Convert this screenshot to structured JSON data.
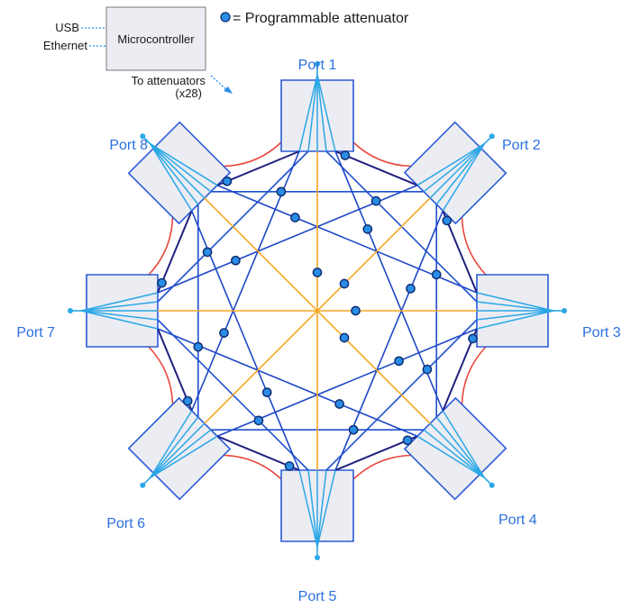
{
  "legend": {
    "label": "= Programmable attenuator"
  },
  "controller": {
    "title": "Microcontroller",
    "usb": "USB",
    "ethernet": "Ethernet",
    "attenuators_line1": "To attenuators",
    "attenuators_line2": "(x28)"
  },
  "ports": [
    {
      "label": "Port 1"
    },
    {
      "label": "Port 2"
    },
    {
      "label": "Port 3"
    },
    {
      "label": "Port 4"
    },
    {
      "label": "Port 5"
    },
    {
      "label": "Port 6"
    },
    {
      "label": "Port 7"
    },
    {
      "label": "Port 8"
    }
  ],
  "colors": {
    "box_fill": "#ececf3",
    "box_stroke": "#2a5bd7",
    "fan": "#2aa7e6",
    "octagon": "#1f1f80",
    "diameter": "#f5a623",
    "couplers": "#e8463a",
    "dot_fill": "#2a8de6",
    "dot_stroke": "#0e2f73",
    "label": "#2b6fe0"
  }
}
